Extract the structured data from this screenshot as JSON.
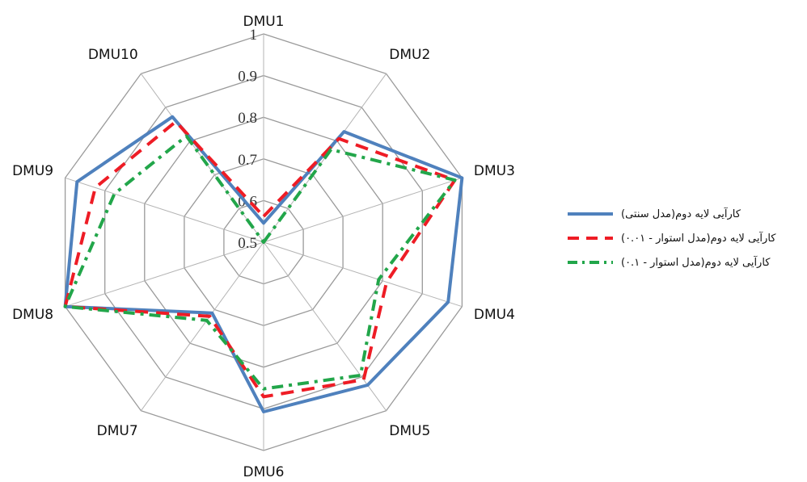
{
  "chart_data": {
    "type": "radar",
    "categories": [
      "DMU1",
      "DMU2",
      "DMU3",
      "DMU4",
      "DMU5",
      "DMU6",
      "DMU7",
      "DMU8",
      "DMU9",
      "DMU10"
    ],
    "ticks": [
      "0.5",
      "0.6",
      "0.7",
      "0.8",
      "0.9",
      "1"
    ],
    "rlim": [
      0.5,
      1.0
    ],
    "series": [
      {
        "name": "کارآیی لایه دوم(مدل سنتی)",
        "color": "#4f81bd",
        "style": "solid",
        "values": [
          0.546,
          0.828,
          1.0,
          0.965,
          0.924,
          0.907,
          0.71,
          1.0,
          0.97,
          0.872
        ]
      },
      {
        "name": "کارآیی لایه دوم(مدل استوار - ۰.۰۱)",
        "color": "#ee1c25",
        "style": "dash",
        "values": [
          0.562,
          0.807,
          0.982,
          0.81,
          0.908,
          0.871,
          0.72,
          1.0,
          0.924,
          0.858
        ]
      },
      {
        "name": "کارآیی لایه دوم(مدل استوار - ۰.۱)",
        "color": "#22a64a",
        "style": "dashdot",
        "values": [
          0.5,
          0.775,
          0.982,
          0.79,
          0.895,
          0.852,
          0.732,
          1.0,
          0.876,
          0.815
        ]
      }
    ]
  }
}
